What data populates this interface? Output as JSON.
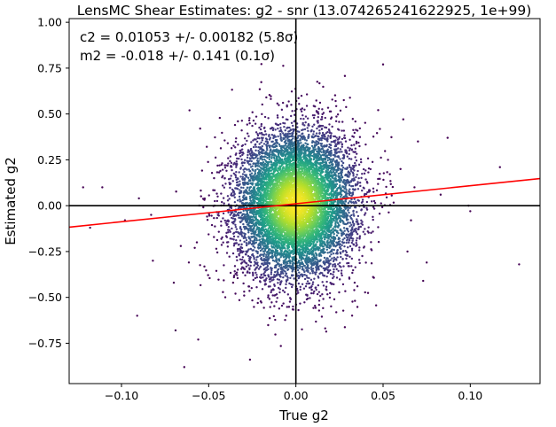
{
  "chart_data": {
    "type": "scatter",
    "title": "LensMC Shear Estimates: g2  - snr (13.074265241622925, 1e+99)",
    "xlabel": "True g2",
    "ylabel": "Estimated g2",
    "xlim": [
      -0.13,
      0.14
    ],
    "ylim": [
      -0.97,
      1.02
    ],
    "xticks": [
      -0.1,
      -0.05,
      0.0,
      0.05,
      0.1
    ],
    "xtick_labels": [
      "−0.10",
      "−0.05",
      "0.00",
      "0.05",
      "0.10"
    ],
    "yticks": [
      -0.75,
      -0.5,
      -0.25,
      0.0,
      0.25,
      0.5,
      0.75,
      1.0
    ],
    "ytick_labels": [
      "−0.75",
      "−0.50",
      "−0.25",
      "0.00",
      "0.25",
      "0.50",
      "0.75",
      "1.00"
    ],
    "annotations": [
      "c2 = 0.01053 +/- 0.00182 (5.8σ)",
      "m2 = -0.018 +/- 0.141 (0.1σ)"
    ],
    "fit_line": {
      "slope": 0.982,
      "intercept": 0.01053,
      "color": "#ff0000"
    },
    "reference_lines": {
      "x": 0.0,
      "y": 0.0,
      "color": "#000000"
    },
    "density_colormap": "viridis",
    "point_cloud": {
      "points_shown": 9000,
      "x_center": 0.0,
      "x_std": 0.017,
      "y_center": 0.01,
      "y_std": 0.2,
      "sparse_outliers": [
        [
          -0.122,
          0.1
        ],
        [
          -0.111,
          0.1
        ],
        [
          -0.098,
          -0.08
        ],
        [
          -0.09,
          0.04
        ],
        [
          -0.083,
          -0.05
        ],
        [
          -0.07,
          -0.42
        ],
        [
          -0.066,
          -0.22
        ],
        [
          -0.058,
          -0.23
        ],
        [
          -0.056,
          -0.73
        ],
        [
          -0.061,
          0.52
        ],
        [
          -0.064,
          -0.88
        ],
        [
          -0.082,
          -0.3
        ],
        [
          -0.091,
          -0.6
        ],
        [
          -0.118,
          -0.12
        ],
        [
          -0.069,
          -0.68
        ],
        [
          0.073,
          -0.41
        ],
        [
          0.075,
          -0.31
        ],
        [
          0.087,
          0.37
        ],
        [
          0.1,
          -0.03
        ],
        [
          0.117,
          0.21
        ],
        [
          0.128,
          -0.32
        ],
        [
          0.099,
          0.0
        ],
        [
          0.066,
          -0.08
        ],
        [
          0.068,
          0.1
        ],
        [
          0.05,
          0.77
        ],
        [
          0.07,
          0.35
        ],
        [
          0.06,
          0.2
        ],
        [
          0.064,
          -0.25
        ],
        [
          0.083,
          0.06
        ],
        [
          -0.036,
          -0.42
        ]
      ]
    }
  }
}
